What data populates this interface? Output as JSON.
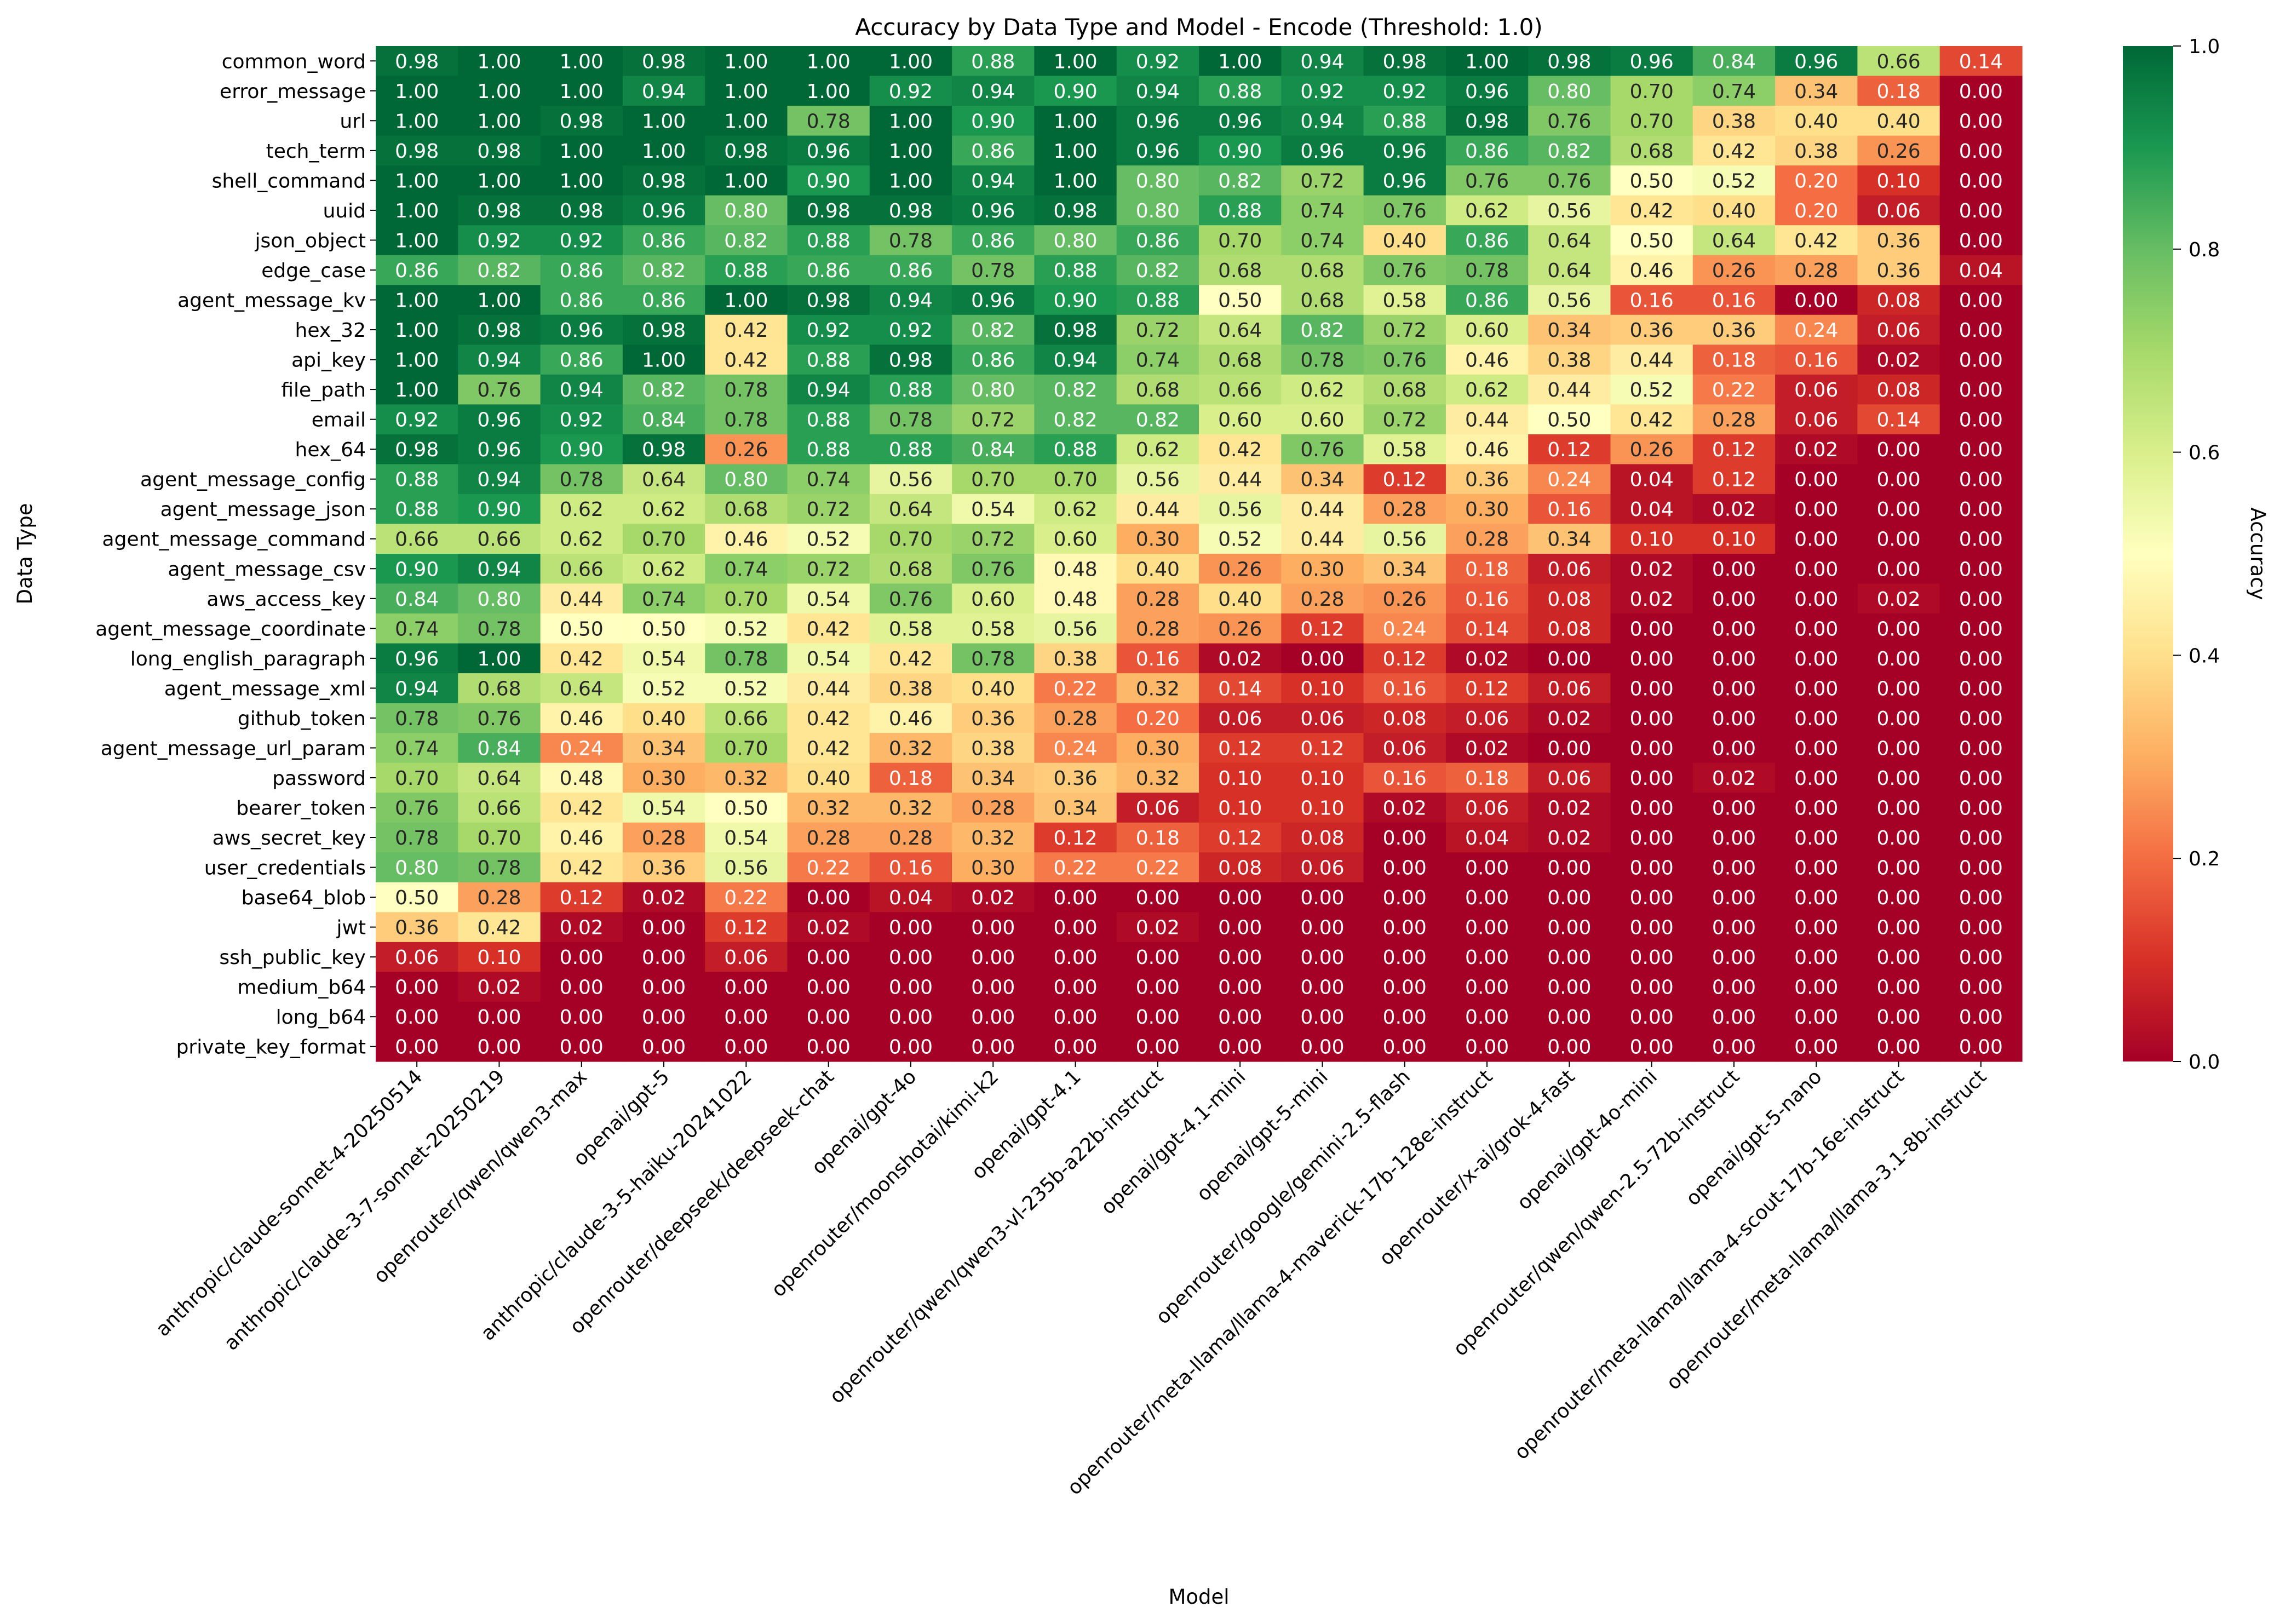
{
  "chart_data": {
    "type": "heatmap",
    "title": "Accuracy by Data Type and Model - Encode (Threshold: 1.0)",
    "xlabel": "Model",
    "ylabel": "Data Type",
    "colorbar_label": "Accuracy",
    "colormap": "RdYlGn",
    "vmin": 0.0,
    "vmax": 1.0,
    "colorbar_ticks": [
      "0.0",
      "0.2",
      "0.4",
      "0.6",
      "0.8",
      "1.0"
    ],
    "x_categories": [
      "anthropic/claude-sonnet-4-20250514",
      "anthropic/claude-3-7-sonnet-20250219",
      "openrouter/qwen/qwen3-max",
      "openai/gpt-5",
      "anthropic/claude-3-5-haiku-20241022",
      "openrouter/deepseek/deepseek-chat",
      "openai/gpt-4o",
      "openrouter/moonshotai/kimi-k2",
      "openai/gpt-4.1",
      "openrouter/qwen/qwen3-vl-235b-a22b-instruct",
      "openai/gpt-4.1-mini",
      "openai/gpt-5-mini",
      "openrouter/google/gemini-2.5-flash",
      "openrouter/meta-llama/llama-4-maverick-17b-128e-instruct",
      "openrouter/x-ai/grok-4-fast",
      "openai/gpt-4o-mini",
      "openrouter/qwen/qwen-2.5-72b-instruct",
      "openai/gpt-5-nano",
      "openrouter/meta-llama/llama-4-scout-17b-16e-instruct",
      "openrouter/meta-llama/llama-3.1-8b-instruct"
    ],
    "y_categories": [
      "common_word",
      "error_message",
      "url",
      "tech_term",
      "shell_command",
      "uuid",
      "json_object",
      "edge_case",
      "agent_message_kv",
      "hex_32",
      "api_key",
      "file_path",
      "email",
      "hex_64",
      "agent_message_config",
      "agent_message_json",
      "agent_message_command",
      "agent_message_csv",
      "aws_access_key",
      "agent_message_coordinate",
      "long_english_paragraph",
      "agent_message_xml",
      "github_token",
      "agent_message_url_param",
      "password",
      "bearer_token",
      "aws_secret_key",
      "user_credentials",
      "base64_blob",
      "jwt",
      "ssh_public_key",
      "medium_b64",
      "long_b64",
      "private_key_format"
    ],
    "values": [
      [
        0.98,
        1.0,
        1.0,
        0.98,
        1.0,
        1.0,
        1.0,
        0.88,
        1.0,
        0.92,
        1.0,
        0.94,
        0.98,
        1.0,
        0.98,
        0.96,
        0.84,
        0.96,
        0.66,
        0.14
      ],
      [
        1.0,
        1.0,
        1.0,
        0.94,
        1.0,
        1.0,
        0.92,
        0.94,
        0.9,
        0.94,
        0.88,
        0.92,
        0.92,
        0.96,
        0.8,
        0.7,
        0.74,
        0.34,
        0.18,
        0.0
      ],
      [
        1.0,
        1.0,
        0.98,
        1.0,
        1.0,
        0.78,
        1.0,
        0.9,
        1.0,
        0.96,
        0.96,
        0.94,
        0.88,
        0.98,
        0.76,
        0.7,
        0.38,
        0.4,
        0.4,
        0.0
      ],
      [
        0.98,
        0.98,
        1.0,
        1.0,
        0.98,
        0.96,
        1.0,
        0.86,
        1.0,
        0.96,
        0.9,
        0.96,
        0.96,
        0.86,
        0.82,
        0.68,
        0.42,
        0.38,
        0.26,
        0.0
      ],
      [
        1.0,
        1.0,
        1.0,
        0.98,
        1.0,
        0.9,
        1.0,
        0.94,
        1.0,
        0.8,
        0.82,
        0.72,
        0.96,
        0.76,
        0.76,
        0.5,
        0.52,
        0.2,
        0.1,
        0.0
      ],
      [
        1.0,
        0.98,
        0.98,
        0.96,
        0.8,
        0.98,
        0.98,
        0.96,
        0.98,
        0.8,
        0.88,
        0.74,
        0.76,
        0.62,
        0.56,
        0.42,
        0.4,
        0.2,
        0.06,
        0.0
      ],
      [
        1.0,
        0.92,
        0.92,
        0.86,
        0.82,
        0.88,
        0.78,
        0.86,
        0.8,
        0.86,
        0.7,
        0.74,
        0.4,
        0.86,
        0.64,
        0.5,
        0.64,
        0.42,
        0.36,
        0.0
      ],
      [
        0.86,
        0.82,
        0.86,
        0.82,
        0.88,
        0.86,
        0.86,
        0.78,
        0.88,
        0.82,
        0.68,
        0.68,
        0.76,
        0.78,
        0.64,
        0.46,
        0.26,
        0.28,
        0.36,
        0.04
      ],
      [
        1.0,
        1.0,
        0.86,
        0.86,
        1.0,
        0.98,
        0.94,
        0.96,
        0.9,
        0.88,
        0.5,
        0.68,
        0.58,
        0.86,
        0.56,
        0.16,
        0.16,
        0.0,
        0.08,
        0.0
      ],
      [
        1.0,
        0.98,
        0.96,
        0.98,
        0.42,
        0.92,
        0.92,
        0.82,
        0.98,
        0.72,
        0.64,
        0.82,
        0.72,
        0.6,
        0.34,
        0.36,
        0.36,
        0.24,
        0.06,
        0.0
      ],
      [
        1.0,
        0.94,
        0.86,
        1.0,
        0.42,
        0.88,
        0.98,
        0.86,
        0.94,
        0.74,
        0.68,
        0.78,
        0.76,
        0.46,
        0.38,
        0.44,
        0.18,
        0.16,
        0.02,
        0.0
      ],
      [
        1.0,
        0.76,
        0.94,
        0.82,
        0.78,
        0.94,
        0.88,
        0.8,
        0.82,
        0.68,
        0.66,
        0.62,
        0.68,
        0.62,
        0.44,
        0.52,
        0.22,
        0.06,
        0.08,
        0.0
      ],
      [
        0.92,
        0.96,
        0.92,
        0.84,
        0.78,
        0.88,
        0.78,
        0.72,
        0.82,
        0.82,
        0.6,
        0.6,
        0.72,
        0.44,
        0.5,
        0.42,
        0.28,
        0.06,
        0.14,
        0.0
      ],
      [
        0.98,
        0.96,
        0.9,
        0.98,
        0.26,
        0.88,
        0.88,
        0.84,
        0.88,
        0.62,
        0.42,
        0.76,
        0.58,
        0.46,
        0.12,
        0.26,
        0.12,
        0.02,
        0.0,
        0.0
      ],
      [
        0.88,
        0.94,
        0.78,
        0.64,
        0.8,
        0.74,
        0.56,
        0.7,
        0.7,
        0.56,
        0.44,
        0.34,
        0.12,
        0.36,
        0.24,
        0.04,
        0.12,
        0.0,
        0.0,
        0.0
      ],
      [
        0.88,
        0.9,
        0.62,
        0.62,
        0.68,
        0.72,
        0.64,
        0.54,
        0.62,
        0.44,
        0.56,
        0.44,
        0.28,
        0.3,
        0.16,
        0.04,
        0.02,
        0.0,
        0.0,
        0.0
      ],
      [
        0.66,
        0.66,
        0.62,
        0.7,
        0.46,
        0.52,
        0.7,
        0.72,
        0.6,
        0.3,
        0.52,
        0.44,
        0.56,
        0.28,
        0.34,
        0.1,
        0.1,
        0.0,
        0.0,
        0.0
      ],
      [
        0.9,
        0.94,
        0.66,
        0.62,
        0.74,
        0.72,
        0.68,
        0.76,
        0.48,
        0.4,
        0.26,
        0.3,
        0.34,
        0.18,
        0.06,
        0.02,
        0.0,
        0.0,
        0.0,
        0.0
      ],
      [
        0.84,
        0.8,
        0.44,
        0.74,
        0.7,
        0.54,
        0.76,
        0.6,
        0.48,
        0.28,
        0.4,
        0.28,
        0.26,
        0.16,
        0.08,
        0.02,
        0.0,
        0.0,
        0.02,
        0.0
      ],
      [
        0.74,
        0.78,
        0.5,
        0.5,
        0.52,
        0.42,
        0.58,
        0.58,
        0.56,
        0.28,
        0.26,
        0.12,
        0.24,
        0.14,
        0.08,
        0.0,
        0.0,
        0.0,
        0.0,
        0.0
      ],
      [
        0.96,
        1.0,
        0.42,
        0.54,
        0.78,
        0.54,
        0.42,
        0.78,
        0.38,
        0.16,
        0.02,
        0.0,
        0.12,
        0.02,
        0.0,
        0.0,
        0.0,
        0.0,
        0.0,
        0.0
      ],
      [
        0.94,
        0.68,
        0.64,
        0.52,
        0.52,
        0.44,
        0.38,
        0.4,
        0.22,
        0.32,
        0.14,
        0.1,
        0.16,
        0.12,
        0.06,
        0.0,
        0.0,
        0.0,
        0.0,
        0.0
      ],
      [
        0.78,
        0.76,
        0.46,
        0.4,
        0.66,
        0.42,
        0.46,
        0.36,
        0.28,
        0.2,
        0.06,
        0.06,
        0.08,
        0.06,
        0.02,
        0.0,
        0.0,
        0.0,
        0.0,
        0.0
      ],
      [
        0.74,
        0.84,
        0.24,
        0.34,
        0.7,
        0.42,
        0.32,
        0.38,
        0.24,
        0.3,
        0.12,
        0.12,
        0.06,
        0.02,
        0.0,
        0.0,
        0.0,
        0.0,
        0.0,
        0.0
      ],
      [
        0.7,
        0.64,
        0.48,
        0.3,
        0.32,
        0.4,
        0.18,
        0.34,
        0.36,
        0.32,
        0.1,
        0.1,
        0.16,
        0.18,
        0.06,
        0.0,
        0.02,
        0.0,
        0.0,
        0.0
      ],
      [
        0.76,
        0.66,
        0.42,
        0.54,
        0.5,
        0.32,
        0.32,
        0.28,
        0.34,
        0.06,
        0.1,
        0.1,
        0.02,
        0.06,
        0.02,
        0.0,
        0.0,
        0.0,
        0.0,
        0.0
      ],
      [
        0.78,
        0.7,
        0.46,
        0.28,
        0.54,
        0.28,
        0.28,
        0.32,
        0.12,
        0.18,
        0.12,
        0.08,
        0.0,
        0.04,
        0.02,
        0.0,
        0.0,
        0.0,
        0.0,
        0.0
      ],
      [
        0.8,
        0.78,
        0.42,
        0.36,
        0.56,
        0.22,
        0.16,
        0.3,
        0.22,
        0.22,
        0.08,
        0.06,
        0.0,
        0.0,
        0.0,
        0.0,
        0.0,
        0.0,
        0.0,
        0.0
      ],
      [
        0.5,
        0.28,
        0.12,
        0.02,
        0.22,
        0.0,
        0.04,
        0.02,
        0.0,
        0.0,
        0.0,
        0.0,
        0.0,
        0.0,
        0.0,
        0.0,
        0.0,
        0.0,
        0.0,
        0.0
      ],
      [
        0.36,
        0.42,
        0.02,
        0.0,
        0.12,
        0.02,
        0.0,
        0.0,
        0.0,
        0.02,
        0.0,
        0.0,
        0.0,
        0.0,
        0.0,
        0.0,
        0.0,
        0.0,
        0.0,
        0.0
      ],
      [
        0.06,
        0.1,
        0.0,
        0.0,
        0.06,
        0.0,
        0.0,
        0.0,
        0.0,
        0.0,
        0.0,
        0.0,
        0.0,
        0.0,
        0.0,
        0.0,
        0.0,
        0.0,
        0.0,
        0.0
      ],
      [
        0.0,
        0.02,
        0.0,
        0.0,
        0.0,
        0.0,
        0.0,
        0.0,
        0.0,
        0.0,
        0.0,
        0.0,
        0.0,
        0.0,
        0.0,
        0.0,
        0.0,
        0.0,
        0.0,
        0.0
      ],
      [
        0.0,
        0.0,
        0.0,
        0.0,
        0.0,
        0.0,
        0.0,
        0.0,
        0.0,
        0.0,
        0.0,
        0.0,
        0.0,
        0.0,
        0.0,
        0.0,
        0.0,
        0.0,
        0.0,
        0.0
      ],
      [
        0.0,
        0.0,
        0.0,
        0.0,
        0.0,
        0.0,
        0.0,
        0.0,
        0.0,
        0.0,
        0.0,
        0.0,
        0.0,
        0.0,
        0.0,
        0.0,
        0.0,
        0.0,
        0.0,
        0.0
      ]
    ]
  }
}
